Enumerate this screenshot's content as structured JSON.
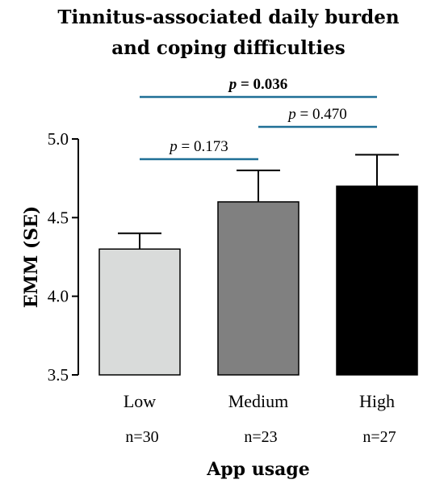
{
  "chart_data": {
    "type": "bar",
    "title_lines": [
      "Tinnitus-associated daily burden",
      "and coping difficulties"
    ],
    "xlabel": "App usage",
    "ylabel": "EMM (SE)",
    "ylim": [
      3.5,
      5.0
    ],
    "yticks": [
      "3.5",
      "4.0",
      "4.5",
      "5.0"
    ],
    "ytick_values": [
      3.5,
      4.0,
      4.5,
      5.0
    ],
    "categories": [
      "Low",
      "Medium",
      "High"
    ],
    "values": [
      4.3,
      4.6,
      4.7
    ],
    "errors": [
      0.1,
      0.2,
      0.2
    ],
    "n_labels": [
      "n=30",
      "n=23",
      "n=27"
    ],
    "bar_colors": [
      "#d9dbda",
      "#808080",
      "#000000"
    ],
    "comparisons": [
      {
        "from": 0,
        "to": 1,
        "p_prefix": "p",
        "p_text": " = 0.173",
        "bold": false,
        "level": 0
      },
      {
        "from": 1,
        "to": 2,
        "p_prefix": "p",
        "p_text": " = 0.470",
        "bold": false,
        "level": 1
      },
      {
        "from": 0,
        "to": 2,
        "p_prefix": "p",
        "p_text": " = 0.036",
        "bold": true,
        "level": 2
      }
    ],
    "comparison_line_color": "#1f6f96",
    "grid": false
  }
}
